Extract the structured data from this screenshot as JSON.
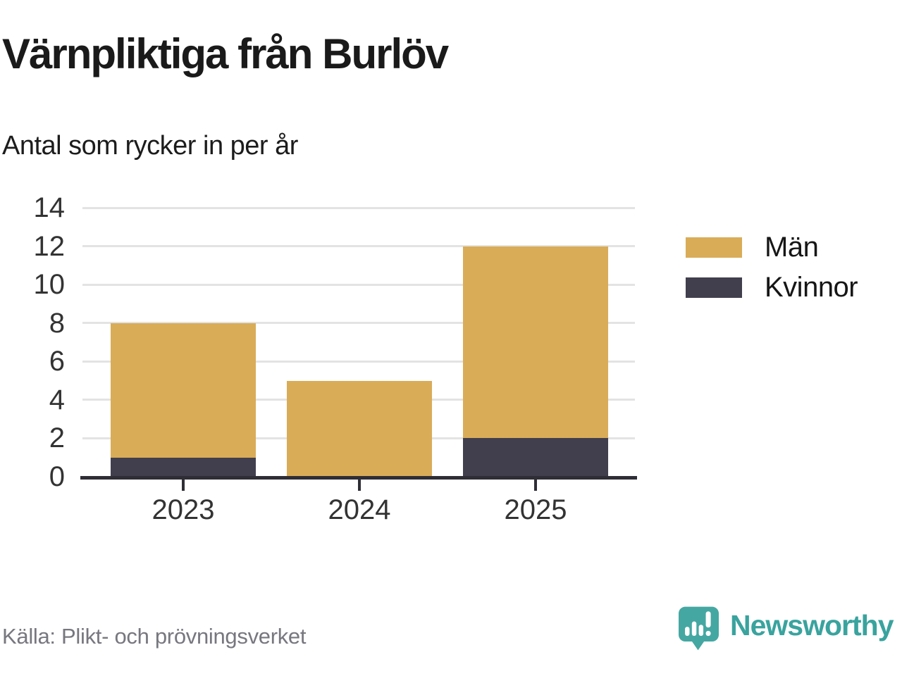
{
  "header": {
    "title": "Värnpliktiga från Burlöv",
    "subtitle": "Antal som rycker in per år"
  },
  "chart_data": {
    "type": "bar",
    "stacked": true,
    "title": "Värnpliktiga från Burlöv",
    "subtitle": "Antal som rycker in per år",
    "categories": [
      "2023",
      "2024",
      "2025"
    ],
    "series": [
      {
        "name": "Män",
        "color": "#d9ac58",
        "values": [
          7,
          5,
          10
        ]
      },
      {
        "name": "Kvinnor",
        "color": "#413f4d",
        "values": [
          1,
          0,
          2
        ]
      }
    ],
    "stack_order_bottom_to_top": [
      "Kvinnor",
      "Män"
    ],
    "stack_totals": [
      8,
      5,
      12
    ],
    "xlabel": "",
    "ylabel": "",
    "ylim": [
      0,
      14
    ],
    "yticks": [
      0,
      2,
      4,
      6,
      8,
      10,
      12,
      14
    ],
    "grid": true,
    "legend_position": "right"
  },
  "footer": {
    "source": "Källa: Plikt- och prövningsverket",
    "brand_name": "Newsworthy"
  },
  "colors": {
    "bar_man": "#d9ac58",
    "bar_kvinnor": "#413f4d",
    "grid": "#e3e3e3",
    "axis": "#2f2e36",
    "axis_label": "#333333",
    "title_text": "#1a1a1a",
    "muted_text": "#77777f",
    "brand_teal_icon": "#45a7a2",
    "brand_teal_text": "#3aa39e"
  }
}
